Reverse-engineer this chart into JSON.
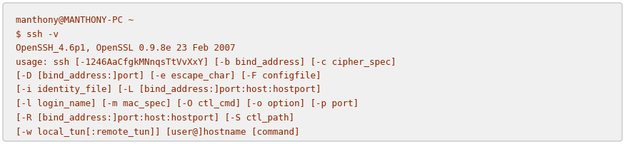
{
  "lines": [
    "manthony@MANTHONY-PC ~",
    "$ ssh -v",
    "OpenSSH_4.6p1, OpenSSL 0.9.8e 23 Feb 2007",
    "usage: ssh [-1246AaCfgkMNnqsTtVvXxY] [-b bind_address] [-c cipher_spec]",
    "[-D [bind_address:]port] [-e escape_char] [-F configfile]",
    "[-i identity_file] [-L [bind_address:]port:host:hostport]",
    "[-l login_name] [-m mac_spec] [-O ctl_cmd] [-o option] [-p port]",
    "[-R [bind_address:]port:host:hostport] [-S ctl_path]",
    "[-w local_tun[:remote_tun]] [user@]hostname [command]"
  ],
  "bg_color": "#f0f0f0",
  "border_color": "#c8c8c8",
  "text_color": "#8B2500",
  "font_family": "monospace",
  "font_size": 9.0,
  "fig_width": 8.75,
  "fig_height": 2.02,
  "dpi": 100
}
